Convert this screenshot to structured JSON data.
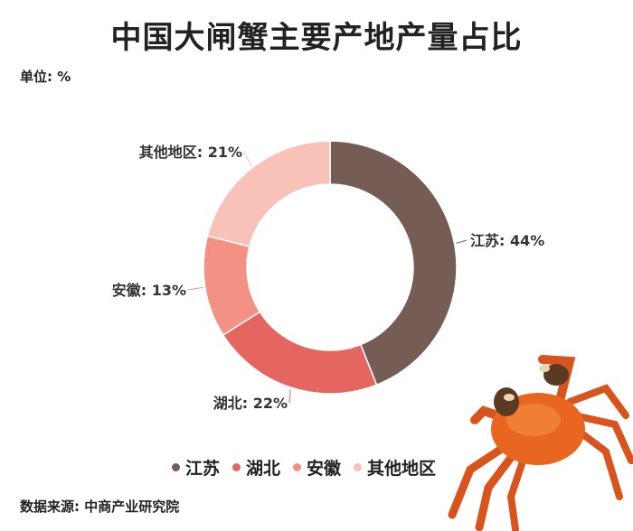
{
  "chart_data": {
    "type": "pie",
    "variant": "donut",
    "title": "中国大闸蟹主要产地产量占比",
    "unit_label": "单位: %",
    "categories": [
      "江苏",
      "湖北",
      "安徽",
      "其他地区"
    ],
    "values": [
      44,
      22,
      13,
      21
    ],
    "data_labels": [
      "江苏: 44%",
      "湖北: 22%",
      "安徽: 13%",
      "其他地区: 21%"
    ],
    "colors": [
      "#755c55",
      "#e56560",
      "#f39184",
      "#f9c2b8"
    ],
    "legend_position": "bottom",
    "source": "数据来源: 中商产业研究院"
  },
  "decoration": {
    "icon": "crab-image"
  }
}
